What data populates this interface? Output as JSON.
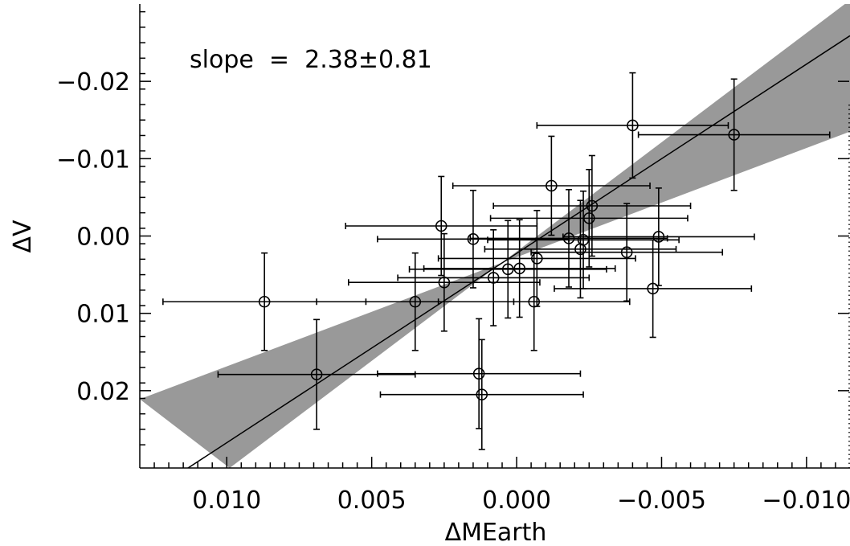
{
  "chart_data": {
    "type": "scatter",
    "title": "",
    "xlabel": "ΔMEarth",
    "ylabel": "ΔV",
    "annotation": "slope  =  2.38±0.81",
    "xlim": [
      0.013,
      -0.0115
    ],
    "ylim": [
      0.03,
      -0.03
    ],
    "x_ticks": [
      {
        "value": 0.01,
        "label": "0.010"
      },
      {
        "value": 0.005,
        "label": "0.005"
      },
      {
        "value": 0.0,
        "label": "0.000"
      },
      {
        "value": -0.005,
        "label": "−0.005"
      },
      {
        "value": -0.01,
        "label": "−0.010"
      }
    ],
    "y_ticks": [
      {
        "value": -0.02,
        "label": "−0.02"
      },
      {
        "value": -0.01,
        "label": "−0.01"
      },
      {
        "value": 0.0,
        "label": "0.00"
      },
      {
        "value": 0.01,
        "label": "0.01"
      },
      {
        "value": 0.02,
        "label": "0.02"
      }
    ],
    "fit_line": {
      "x": [
        0.0115,
        -0.0115
      ],
      "y": [
        0.0304,
        -0.0259
      ]
    },
    "fit_band": {
      "upper": {
        "x": [
          0.013,
          -0.0115
        ],
        "y": [
          0.0211,
          -0.0135
        ]
      },
      "lower": {
        "x": [
          0.0099,
          -0.0115
        ],
        "y": [
          0.03,
          -0.0305
        ]
      },
      "color": "#999999"
    },
    "points": [
      {
        "x": 0.0087,
        "y": 0.0085,
        "xerr": 0.0035,
        "yerr": 0.0063
      },
      {
        "x": 0.0069,
        "y": 0.0179,
        "xerr": 0.0034,
        "yerr": 0.0071
      },
      {
        "x": 0.0035,
        "y": 0.0085,
        "xerr": 0.0034,
        "yerr": 0.0063
      },
      {
        "x": 0.0025,
        "y": 0.006,
        "xerr": 0.0033,
        "yerr": 0.0063
      },
      {
        "x": 0.0026,
        "y": -0.0013,
        "xerr": 0.0033,
        "yerr": 0.0064
      },
      {
        "x": 0.0015,
        "y": 0.0004,
        "xerr": 0.0033,
        "yerr": 0.0063
      },
      {
        "x": 0.0013,
        "y": 0.0178,
        "xerr": 0.0035,
        "yerr": 0.0071
      },
      {
        "x": 0.0012,
        "y": 0.0205,
        "xerr": 0.0035,
        "yerr": 0.0071
      },
      {
        "x": 0.0008,
        "y": 0.0054,
        "xerr": 0.0033,
        "yerr": 0.0062
      },
      {
        "x": 0.0003,
        "y": 0.0043,
        "xerr": 0.0034,
        "yerr": 0.0063
      },
      {
        "x": -0.0001,
        "y": 0.0042,
        "xerr": 0.0033,
        "yerr": 0.0063
      },
      {
        "x": -0.0006,
        "y": 0.0085,
        "xerr": 0.0033,
        "yerr": 0.0063
      },
      {
        "x": -0.0007,
        "y": 0.0029,
        "xerr": 0.0034,
        "yerr": 0.0062
      },
      {
        "x": -0.0012,
        "y": -0.0065,
        "xerr": 0.0034,
        "yerr": 0.0064
      },
      {
        "x": -0.0018,
        "y": 0.0003,
        "xerr": 0.0034,
        "yerr": 0.0063
      },
      {
        "x": -0.0022,
        "y": 0.0017,
        "xerr": 0.0033,
        "yerr": 0.0063
      },
      {
        "x": -0.0023,
        "y": 0.0005,
        "xerr": 0.0033,
        "yerr": 0.0063
      },
      {
        "x": -0.0025,
        "y": -0.0023,
        "xerr": 0.0034,
        "yerr": 0.0063
      },
      {
        "x": -0.0026,
        "y": -0.0039,
        "xerr": 0.0034,
        "yerr": 0.0065
      },
      {
        "x": -0.0038,
        "y": 0.0021,
        "xerr": 0.0033,
        "yerr": 0.0063
      },
      {
        "x": -0.004,
        "y": -0.0143,
        "xerr": 0.0033,
        "yerr": 0.0068
      },
      {
        "x": -0.0047,
        "y": 0.0068,
        "xerr": 0.0034,
        "yerr": 0.0063
      },
      {
        "x": -0.0049,
        "y": 0.0001,
        "xerr": 0.0033,
        "yerr": 0.0063
      },
      {
        "x": -0.0075,
        "y": -0.0131,
        "xerr": 0.0033,
        "yerr": 0.0072
      }
    ]
  }
}
